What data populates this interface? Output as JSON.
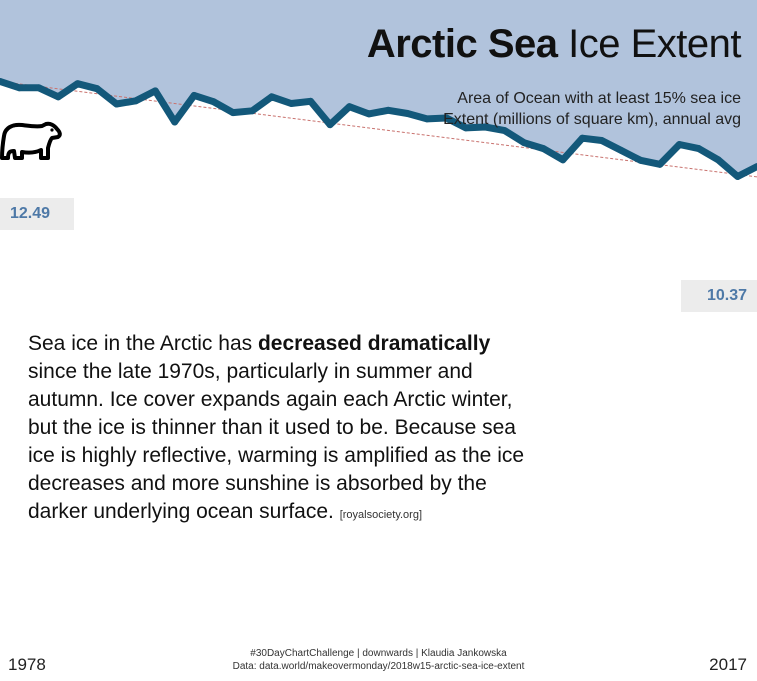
{
  "chart_data": {
    "type": "line",
    "title_bold": "Arctic Sea",
    "title_rest": "Ice Extent",
    "subtitle_line1": "Area of Ocean with at least 15% sea ice",
    "subtitle_line2": "Extent (millions of square km), annual avg",
    "x": [
      1978,
      1979,
      1980,
      1981,
      1982,
      1983,
      1984,
      1985,
      1986,
      1987,
      1988,
      1989,
      1990,
      1991,
      1992,
      1993,
      1994,
      1995,
      1996,
      1997,
      1998,
      1999,
      2000,
      2001,
      2002,
      2003,
      2004,
      2005,
      2006,
      2007,
      2008,
      2009,
      2010,
      2011,
      2012,
      2013,
      2014,
      2015,
      2016,
      2017
    ],
    "values": [
      12.49,
      12.35,
      12.35,
      12.15,
      12.44,
      12.33,
      11.99,
      12.06,
      12.28,
      11.59,
      12.18,
      12.04,
      11.8,
      11.84,
      12.15,
      12.0,
      12.05,
      11.53,
      11.93,
      11.77,
      11.85,
      11.78,
      11.66,
      11.68,
      11.46,
      11.48,
      11.4,
      11.13,
      11.0,
      10.75,
      11.23,
      11.18,
      10.96,
      10.74,
      10.65,
      11.09,
      11.0,
      10.75,
      10.38,
      10.6
    ],
    "trend": [
      12.49,
      10.37
    ],
    "start_label": "12.49",
    "end_label": "10.37",
    "ylim": [
      6.97,
      14.3
    ],
    "colors": {
      "sky": "#b1c3dc",
      "line": "#13587a",
      "trend": "#c9736f",
      "label_text": "#4e79a7"
    }
  },
  "description": {
    "text_before": "Sea ice in the Arctic has ",
    "text_bold": "decreased dramatically",
    "text_after": " since the late 1970s, particularly in summer and autumn. Ice cover expands again each Arctic winter, but the ice is thinner than it used to be. Because sea ice is highly reflective, warming is amplified as the ice decreases and more sunshine is absorbed by the darker underlying ocean surface. ",
    "source": "[royalsociety.org]"
  },
  "footer": {
    "line1": "#30DayChartChallenge | downwards | Klaudia Jankowska",
    "line2": "Data: data.world/makeovermonday/2018w15-arctic-sea-ice-extent"
  },
  "years": {
    "start": "1978",
    "end": "2017"
  }
}
